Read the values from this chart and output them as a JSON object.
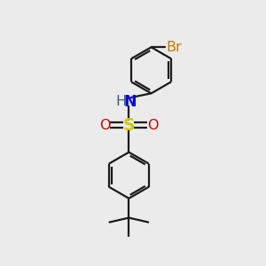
{
  "background_color": "#ebebeb",
  "bond_color": "#1a1a1a",
  "bond_width": 1.6,
  "S_color": "#cccc00",
  "O_color": "#cc0000",
  "N_color": "#0000ee",
  "Br_color": "#cc7700",
  "H_color": "#336666",
  "font_size": 11.5,
  "figsize": [
    3.0,
    3.0
  ],
  "dpi": 100,
  "xlim": [
    -1.6,
    2.0
  ],
  "ylim": [
    -3.0,
    2.5
  ]
}
